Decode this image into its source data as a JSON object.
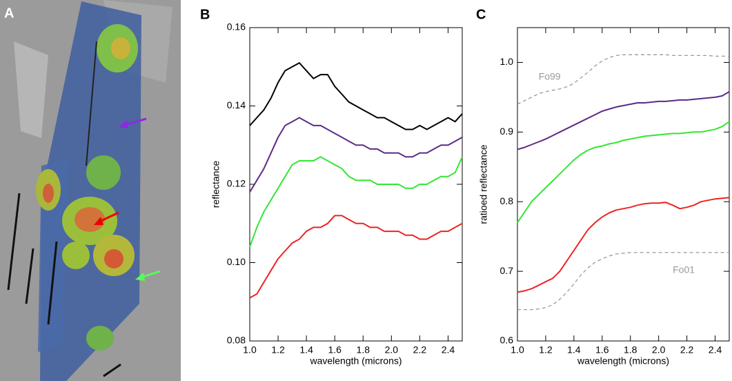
{
  "map_panel": {
    "label": "A"
  },
  "chart_data": [
    {
      "type": "line",
      "title": "B",
      "ylabel": "reflectance",
      "xlabel": "wavelength (microns)",
      "x": [
        1.0,
        1.05,
        1.1,
        1.15,
        1.2,
        1.25,
        1.3,
        1.35,
        1.4,
        1.45,
        1.5,
        1.55,
        1.6,
        1.65,
        1.7,
        1.75,
        1.8,
        1.85,
        1.9,
        1.95,
        2.0,
        2.05,
        2.1,
        2.15,
        2.2,
        2.25,
        2.3,
        2.35,
        2.4,
        2.45,
        2.5
      ],
      "xlim": [
        1.0,
        2.5
      ],
      "xticks": [
        {
          "value": 1,
          "label": "1.0"
        },
        1.2,
        1.4,
        1.6,
        1.8,
        {
          "value": 2,
          "label": "2.0"
        },
        2.2,
        2.4
      ],
      "ylim": [
        0.08,
        0.16
      ],
      "yticks": [
        0.08,
        {
          "value": 0.1,
          "label": "0.10"
        },
        0.12,
        0.14,
        0.16
      ],
      "series": [
        {
          "color": "#000000",
          "values": [
            0.135,
            0.137,
            0.139,
            0.142,
            0.146,
            0.149,
            0.15,
            0.151,
            0.149,
            0.147,
            0.148,
            0.148,
            0.145,
            0.143,
            0.141,
            0.14,
            0.139,
            0.138,
            0.137,
            0.137,
            0.136,
            0.135,
            0.134,
            0.134,
            0.135,
            0.134,
            0.135,
            0.136,
            0.137,
            0.136,
            0.138
          ]
        },
        {
          "color": "#5b2a86",
          "values": [
            0.118,
            0.121,
            0.124,
            0.128,
            0.132,
            0.135,
            0.136,
            0.137,
            0.136,
            0.135,
            0.135,
            0.134,
            0.133,
            0.132,
            0.131,
            0.13,
            0.13,
            0.129,
            0.129,
            0.128,
            0.128,
            0.128,
            0.127,
            0.127,
            0.128,
            0.128,
            0.129,
            0.13,
            0.13,
            0.131,
            0.132
          ]
        },
        {
          "color": "#33e633",
          "values": [
            0.104,
            0.109,
            0.113,
            0.116,
            0.119,
            0.122,
            0.125,
            0.126,
            0.126,
            0.126,
            0.127,
            0.126,
            0.125,
            0.124,
            0.122,
            0.121,
            0.121,
            0.121,
            0.12,
            0.12,
            0.12,
            0.12,
            0.119,
            0.119,
            0.12,
            0.12,
            0.121,
            0.122,
            0.122,
            0.123,
            0.127
          ]
        },
        {
          "color": "#ee2222",
          "values": [
            0.091,
            0.092,
            0.095,
            0.098,
            0.101,
            0.103,
            0.105,
            0.106,
            0.108,
            0.109,
            0.109,
            0.11,
            0.112,
            0.112,
            0.111,
            0.11,
            0.11,
            0.109,
            0.109,
            0.108,
            0.108,
            0.108,
            0.107,
            0.107,
            0.106,
            0.106,
            0.107,
            0.108,
            0.108,
            0.109,
            0.11
          ]
        }
      ]
    },
    {
      "type": "line",
      "title": "C",
      "ylabel": "ratioed reflectance",
      "xlabel": "wavelength (microns)",
      "x": [
        1.0,
        1.05,
        1.1,
        1.15,
        1.2,
        1.25,
        1.3,
        1.35,
        1.4,
        1.45,
        1.5,
        1.55,
        1.6,
        1.65,
        1.7,
        1.75,
        1.8,
        1.85,
        1.9,
        1.95,
        2.0,
        2.05,
        2.1,
        2.15,
        2.2,
        2.25,
        2.3,
        2.35,
        2.4,
        2.45,
        2.5
      ],
      "xlim": [
        1.0,
        2.5
      ],
      "xticks": [
        {
          "value": 1,
          "label": "1.0"
        },
        1.2,
        1.4,
        1.6,
        1.8,
        {
          "value": 2,
          "label": "2.0"
        },
        2.2,
        2.4
      ],
      "ylim": [
        0.6,
        1.05
      ],
      "yticks": [
        0.6,
        0.7,
        0.8,
        0.9,
        {
          "value": 1,
          "label": "1.0"
        }
      ],
      "series": [
        {
          "color": "#5b2a86",
          "values": [
            0.875,
            0.878,
            0.882,
            0.886,
            0.89,
            0.895,
            0.9,
            0.905,
            0.91,
            0.915,
            0.92,
            0.925,
            0.93,
            0.933,
            0.936,
            0.938,
            0.94,
            0.942,
            0.942,
            0.943,
            0.944,
            0.944,
            0.945,
            0.946,
            0.946,
            0.947,
            0.948,
            0.949,
            0.95,
            0.952,
            0.958
          ]
        },
        {
          "color": "#33e633",
          "values": [
            0.77,
            0.785,
            0.8,
            0.81,
            0.82,
            0.83,
            0.84,
            0.85,
            0.86,
            0.868,
            0.874,
            0.878,
            0.88,
            0.883,
            0.885,
            0.888,
            0.89,
            0.892,
            0.894,
            0.895,
            0.896,
            0.897,
            0.898,
            0.898,
            0.899,
            0.9,
            0.9,
            0.902,
            0.904,
            0.908,
            0.915
          ]
        },
        {
          "color": "#ee2222",
          "values": [
            0.67,
            0.672,
            0.675,
            0.68,
            0.685,
            0.69,
            0.7,
            0.715,
            0.73,
            0.745,
            0.76,
            0.77,
            0.778,
            0.784,
            0.788,
            0.79,
            0.792,
            0.795,
            0.797,
            0.798,
            0.798,
            0.799,
            0.795,
            0.79,
            0.792,
            0.795,
            0.8,
            0.802,
            0.804,
            0.805,
            0.806
          ]
        },
        {
          "name": "Fo99",
          "color": "#999999",
          "dashed": true,
          "values": [
            0.94,
            0.945,
            0.95,
            0.955,
            0.958,
            0.96,
            0.962,
            0.965,
            0.97,
            0.978,
            0.986,
            0.995,
            1.002,
            1.007,
            1.01,
            1.011,
            1.011,
            1.011,
            1.011,
            1.011,
            1.011,
            1.011,
            1.01,
            1.01,
            1.01,
            1.01,
            1.01,
            1.01,
            1.009,
            1.009,
            1.009
          ]
        },
        {
          "name": "Fo01",
          "color": "#999999",
          "dashed": true,
          "values": [
            0.645,
            0.645,
            0.645,
            0.646,
            0.648,
            0.652,
            0.66,
            0.67,
            0.682,
            0.695,
            0.705,
            0.713,
            0.718,
            0.722,
            0.725,
            0.726,
            0.727,
            0.727,
            0.727,
            0.727,
            0.727,
            0.727,
            0.727,
            0.727,
            0.727,
            0.727,
            0.727,
            0.727,
            0.727,
            0.727,
            0.727
          ]
        }
      ]
    }
  ]
}
